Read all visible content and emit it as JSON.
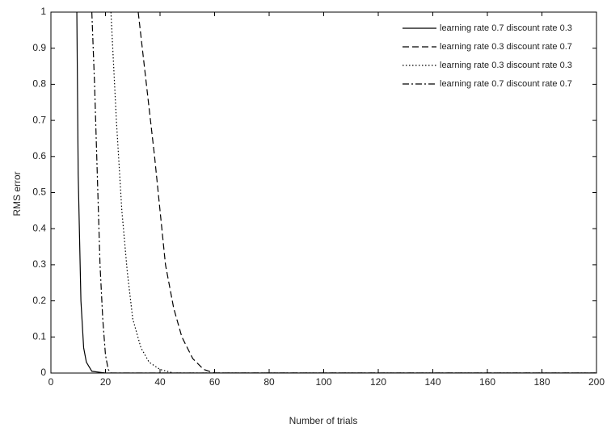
{
  "chart_data": {
    "type": "line",
    "xlabel": "Number of trials",
    "ylabel": "RMS error",
    "xlim": [
      0,
      200
    ],
    "ylim": [
      0,
      1
    ],
    "xticks": [
      0,
      20,
      40,
      60,
      80,
      100,
      120,
      140,
      160,
      180,
      200
    ],
    "yticks": [
      0,
      0.1,
      0.2,
      0.3,
      0.4,
      0.5,
      0.6,
      0.7,
      0.8,
      0.9,
      1
    ],
    "grid": false,
    "legend": "upper right",
    "series": [
      {
        "name": "learning rate 0.7 discount rate 0.3",
        "color": "#000000",
        "dash": "solid",
        "x": [
          9.5,
          10,
          11,
          12,
          13,
          15,
          20,
          200
        ],
        "values": [
          1,
          0.55,
          0.2,
          0.07,
          0.03,
          0.005,
          0,
          0
        ]
      },
      {
        "name": "learning rate 0.3 discount rate 0.7",
        "color": "#000000",
        "dash": "dashed",
        "x": [
          32,
          35,
          38,
          40,
          42,
          45,
          48,
          52,
          56,
          60,
          200
        ],
        "values": [
          1,
          0.8,
          0.6,
          0.45,
          0.3,
          0.18,
          0.1,
          0.04,
          0.01,
          0,
          0
        ]
      },
      {
        "name": "learning rate 0.3 discount rate 0.3",
        "color": "#000000",
        "dash": "dotted",
        "x": [
          22,
          24,
          26,
          28,
          30,
          33,
          36,
          40,
          45,
          200
        ],
        "values": [
          1,
          0.7,
          0.45,
          0.28,
          0.15,
          0.07,
          0.03,
          0.01,
          0,
          0
        ]
      },
      {
        "name": "learning rate 0.7 discount rate 0.7",
        "color": "#000000",
        "dash": "dashdot",
        "x": [
          15,
          16,
          17,
          18,
          19,
          20,
          21,
          22,
          200
        ],
        "values": [
          1,
          0.8,
          0.55,
          0.3,
          0.15,
          0.05,
          0.01,
          0,
          0
        ]
      }
    ]
  }
}
